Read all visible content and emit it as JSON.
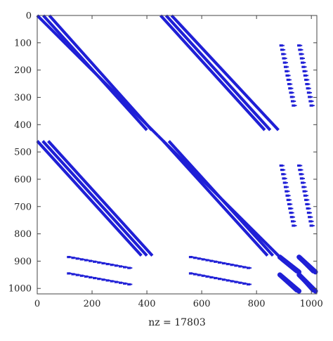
{
  "chart_data": {
    "type": "scatter",
    "subtype": "sparsity-pattern",
    "title": "",
    "xlabel": "nz = 17803",
    "ylabel": "",
    "nz": 17803,
    "xlim": [
      0,
      1020
    ],
    "ylim": [
      1020,
      0
    ],
    "y_axis_inverted": true,
    "grid": false,
    "legend": "none",
    "marker_color": "#1f1fd6",
    "x_ticks": [
      0,
      200,
      400,
      600,
      800,
      1000
    ],
    "y_ticks": [
      0,
      100,
      200,
      300,
      400,
      500,
      600,
      700,
      800,
      900,
      1000
    ],
    "diagonal_bands": [
      {
        "name": "",
        "x0": 0,
        "y0": 0,
        "x1": 440,
        "y1": 440
      },
      {
        "name": "",
        "x0": 22,
        "y0": 0,
        "x1": 400,
        "y1": 420
      },
      {
        "name": "",
        "x0": 44,
        "y0": 0,
        "x1": 418,
        "y1": 420
      },
      {
        "name": "",
        "x0": 440,
        "y0": 440,
        "x1": 880,
        "y1": 880
      },
      {
        "name": "",
        "x0": 450,
        "y0": 0,
        "x1": 830,
        "y1": 420
      },
      {
        "name": "",
        "x0": 470,
        "y0": 0,
        "x1": 850,
        "y1": 420
      },
      {
        "name": "",
        "x0": 490,
        "y0": 0,
        "x1": 880,
        "y1": 420
      },
      {
        "name": "",
        "x0": 0,
        "y0": 460,
        "x1": 380,
        "y1": 880
      },
      {
        "name": "",
        "x0": 20,
        "y0": 460,
        "x1": 400,
        "y1": 880
      },
      {
        "name": "",
        "x0": 40,
        "y0": 460,
        "x1": 420,
        "y1": 880
      },
      {
        "name": "",
        "x0": 460,
        "y0": 460,
        "x1": 840,
        "y1": 880
      },
      {
        "name": "",
        "x0": 480,
        "y0": 460,
        "x1": 860,
        "y1": 880
      }
    ],
    "dotted_bands": [
      {
        "x0": 890,
        "y0": 110,
        "x1": 935,
        "y1": 330
      },
      {
        "x0": 955,
        "y0": 110,
        "x1": 1000,
        "y1": 330
      },
      {
        "x0": 890,
        "y0": 550,
        "x1": 935,
        "y1": 770
      },
      {
        "x0": 955,
        "y0": 550,
        "x1": 1000,
        "y1": 770
      },
      {
        "x0": 115,
        "y0": 885,
        "x1": 335,
        "y1": 925
      },
      {
        "x0": 115,
        "y0": 945,
        "x1": 335,
        "y1": 985
      },
      {
        "x0": 560,
        "y0": 885,
        "x1": 770,
        "y1": 925
      },
      {
        "x0": 560,
        "y0": 945,
        "x1": 770,
        "y1": 985
      }
    ],
    "dense_blocks": [
      {
        "x0": 880,
        "y0": 880,
        "x1": 960,
        "y1": 945
      },
      {
        "x0": 950,
        "y0": 880,
        "x1": 1020,
        "y1": 945
      },
      {
        "x0": 880,
        "y0": 945,
        "x1": 960,
        "y1": 1015
      },
      {
        "x0": 950,
        "y0": 945,
        "x1": 1020,
        "y1": 1015
      }
    ]
  }
}
